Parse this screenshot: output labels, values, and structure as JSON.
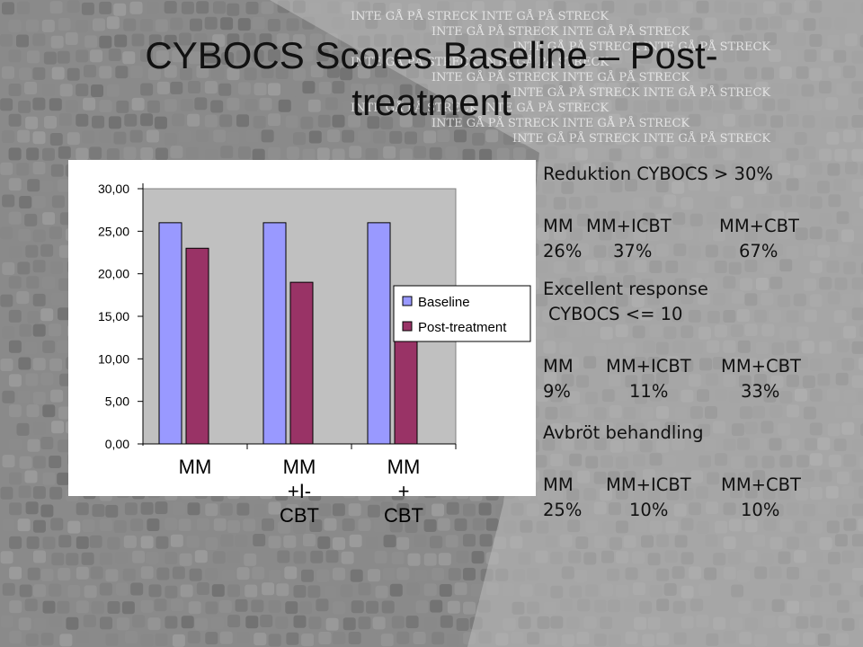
{
  "title": {
    "line1": "CYBOCS Scores Baseline – Post-",
    "line2": "treatment"
  },
  "background": {
    "color": "#8a8a8a",
    "watermark_text": "INTE GÅ PÅ STRECK"
  },
  "chart_data": {
    "type": "bar",
    "categories": [
      "MM",
      "MM\n+I-\nCBT",
      "MM\n+\nCBT"
    ],
    "series": [
      {
        "name": "Baseline",
        "values": [
          26.0,
          26.0,
          26.0
        ],
        "color": "#9999ff"
      },
      {
        "name": "Post-treatment",
        "values": [
          23.0,
          19.0,
          14.0
        ],
        "color": "#993366"
      }
    ],
    "y_ticks": [
      "30,00",
      "25,00",
      "20,00",
      "15,00",
      "10,00",
      "5,00",
      "0,00"
    ],
    "ylim": [
      0,
      30
    ],
    "legend_position": "right",
    "grid": false
  },
  "stats": {
    "reduction": {
      "heading": "Reduktion CYBOCS > 30%",
      "groups": [
        "MM",
        "MM+ICBT",
        "MM+CBT"
      ],
      "values": [
        "26%",
        "37%",
        "67%"
      ]
    },
    "excellent": {
      "heading_line1": "Excellent response",
      "heading_line2": "CYBOCS <= 10",
      "groups": [
        "MM",
        "MM+ICBT",
        "MM+CBT"
      ],
      "values": [
        "9%",
        "11%",
        "33%"
      ]
    },
    "dropout": {
      "heading": "Avbröt behandling",
      "groups": [
        "MM",
        "MM+ICBT",
        "MM+CBT"
      ],
      "values": [
        "25%",
        "10%",
        "10%"
      ]
    }
  }
}
